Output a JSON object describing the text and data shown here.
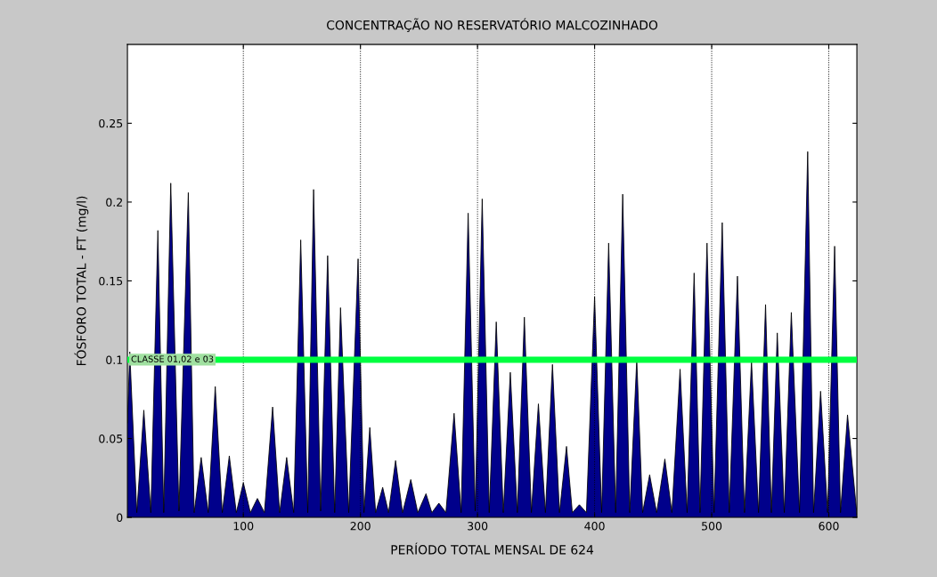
{
  "chart_data": {
    "type": "area",
    "title": "CONCENTRAÇÃO NO RESERVATÓRIO MALCOZINHADO",
    "xlabel": "PERÍODO TOTAL MENSAL DE 624",
    "ylabel": "FÓSFORO TOTAL - FT (mg/l)",
    "x": [
      1,
      3,
      9,
      15,
      21,
      27,
      32,
      38,
      45,
      53,
      58,
      64,
      70,
      76,
      82,
      88,
      94,
      100,
      106,
      112,
      118,
      125,
      131,
      137,
      143,
      149,
      155,
      160,
      166,
      172,
      178,
      183,
      190,
      198,
      203,
      208,
      213,
      219,
      224,
      230,
      236,
      243,
      249,
      256,
      261,
      267,
      273,
      280,
      286,
      292,
      298,
      304,
      310,
      316,
      322,
      328,
      334,
      340,
      346,
      352,
      358,
      364,
      370,
      376,
      381,
      387,
      393,
      400,
      406,
      412,
      418,
      424,
      430,
      436,
      441,
      447,
      453,
      460,
      466,
      473,
      479,
      485,
      490,
      496,
      502,
      509,
      515,
      522,
      528,
      534,
      540,
      546,
      551,
      556,
      562,
      568,
      575,
      582,
      587,
      593,
      599,
      605,
      610,
      616,
      624
    ],
    "series": [
      {
        "color": "#00008b",
        "values": [
          0.06,
          0.105,
          0.003,
          0.068,
          0.003,
          0.182,
          0.003,
          0.212,
          0.004,
          0.206,
          0.003,
          0.038,
          0.003,
          0.083,
          0.003,
          0.039,
          0.003,
          0.022,
          0.003,
          0.012,
          0.003,
          0.07,
          0.003,
          0.038,
          0.003,
          0.176,
          0.003,
          0.208,
          0.004,
          0.166,
          0.003,
          0.133,
          0.003,
          0.164,
          0.003,
          0.057,
          0.003,
          0.019,
          0.003,
          0.036,
          0.003,
          0.024,
          0.003,
          0.015,
          0.003,
          0.009,
          0.003,
          0.066,
          0.003,
          0.193,
          0.004,
          0.202,
          0.003,
          0.124,
          0.003,
          0.092,
          0.003,
          0.127,
          0.003,
          0.072,
          0.003,
          0.097,
          0.003,
          0.045,
          0.003,
          0.008,
          0.003,
          0.14,
          0.003,
          0.174,
          0.003,
          0.205,
          0.003,
          0.1,
          0.003,
          0.027,
          0.003,
          0.037,
          0.003,
          0.094,
          0.003,
          0.155,
          0.003,
          0.174,
          0.003,
          0.187,
          0.003,
          0.153,
          0.003,
          0.099,
          0.003,
          0.135,
          0.003,
          0.117,
          0.003,
          0.13,
          0.003,
          0.232,
          0.003,
          0.08,
          0.003,
          0.172,
          0.003,
          0.065,
          0.002
        ]
      }
    ],
    "xlim": [
      1,
      624
    ],
    "ylim": [
      0,
      0.3
    ],
    "xticks": [
      100,
      200,
      300,
      400,
      500,
      600
    ],
    "yticks": [
      0,
      0.05,
      0.1,
      0.15,
      0.2,
      0.25
    ],
    "grid": "x",
    "ref_lines": [
      {
        "axis": "y",
        "value": 0.1,
        "label": "CLASSE 01,02 e 03",
        "color": "#00ff40",
        "line_style": "solid"
      }
    ]
  }
}
